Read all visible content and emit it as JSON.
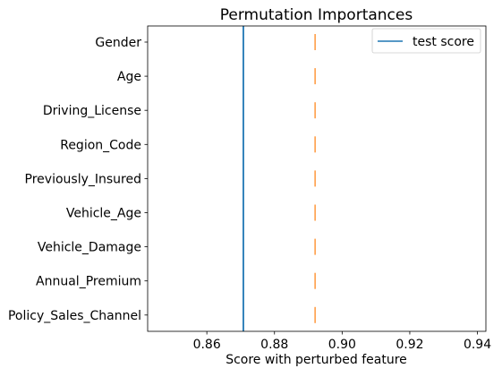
{
  "chart_data": {
    "type": "scatter",
    "title": "Permutation Importances",
    "xlabel": "Score with perturbed feature",
    "ylabel": "",
    "xlim": [
      0.8425,
      0.9425
    ],
    "xticks": [
      "0.86",
      "0.88",
      "0.90",
      "0.92",
      "0.94"
    ],
    "xtick_values": [
      0.86,
      0.88,
      0.9,
      0.92,
      0.94
    ],
    "categories": [
      "Gender",
      "Age",
      "Driving_License",
      "Region_Code",
      "Previously_Insured",
      "Vehicle_Age",
      "Vehicle_Damage",
      "Annual_Premium",
      "Policy_Sales_Channel"
    ],
    "series": [
      {
        "marker": "vertical-tick",
        "color": "#ff7f0e",
        "values": [
          0.892,
          0.892,
          0.892,
          0.892,
          0.892,
          0.892,
          0.892,
          0.892,
          0.892
        ]
      }
    ],
    "reference_lines": [
      {
        "name": "test score",
        "orientation": "vertical",
        "value": 0.8708,
        "color": "#1f77b4"
      }
    ],
    "legend": {
      "placement": "top-right",
      "entries": [
        "test score"
      ]
    },
    "grid": false
  }
}
